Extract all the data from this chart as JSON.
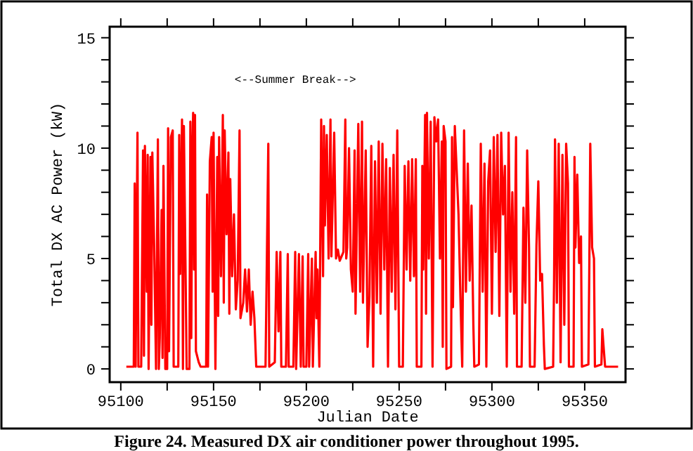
{
  "chart_data": {
    "type": "line",
    "xlabel": "Julian Date",
    "ylabel": "Total DX AC Power (kW)",
    "annotations": [
      "<--Summer Break-->",
      "Figure 24.  Measured DX air conditioner power throughout 1995."
    ],
    "xlim": [
      95094,
      95372
    ],
    "ylim": [
      -0.6,
      15.5
    ],
    "xticks": [
      95100,
      {
        "value": 95125,
        "label": null
      },
      95150,
      {
        "value": 95175,
        "label": null
      },
      95200,
      {
        "value": 95225,
        "label": null
      },
      95250,
      {
        "value": 95275,
        "label": null
      },
      95300,
      {
        "value": 95325,
        "label": null
      },
      95350
    ],
    "yticks": [
      0,
      {
        "value": 1,
        "label": null
      },
      {
        "value": 2,
        "label": null
      },
      {
        "value": 3,
        "label": null
      },
      {
        "value": 4,
        "label": null
      },
      5,
      {
        "value": 6,
        "label": null
      },
      {
        "value": 7,
        "label": null
      },
      {
        "value": 8,
        "label": null
      },
      {
        "value": 9,
        "label": null
      },
      10,
      {
        "value": 11,
        "label": null
      },
      {
        "value": 12,
        "label": null
      },
      {
        "value": 13,
        "label": null
      },
      {
        "value": 14,
        "label": null
      },
      15
    ],
    "grid": false,
    "marker": "none",
    "line_style": "solid",
    "series": [
      {
        "color": "#ff0000",
        "x": [
          95103,
          95107,
          95107.5,
          95108,
          95109,
          95109.5,
          95111,
          95112,
          95112.5,
          95113,
          95114,
          95114.5,
          95115,
          95116,
          95116.5,
          95117,
          95118,
          95119,
          95120,
          95120.5,
          95121,
          95122,
          95122.5,
          95123,
          95124,
          95125,
          95125.5,
          95126,
          95127,
          95128,
          95128.5,
          95131,
          95131.5,
          95132,
          95133,
          95133.5,
          95134,
          95135,
          95135.5,
          95137,
          95137.5,
          95138,
          95138.5,
          95139,
          95139.5,
          95140,
          95140.5,
          95142,
          95143,
          95146,
          95146.5,
          95147,
          95148,
          95149,
          95149.5,
          95150,
          95151,
          95152,
          95152.5,
          95153,
          95154,
          95155,
          95155.5,
          95156,
          95157,
          95158,
          95158.5,
          95159,
          95160,
          95161,
          95162,
          95163,
          95164,
          95164.5,
          95166,
          95167,
          95168,
          95169,
          95170,
          95171,
          95172,
          95173,
          95178,
          95179.5,
          95180,
          95183,
          95184,
          95185,
          95186,
          95186.5,
          95189,
          95190,
          95190.5,
          95193,
          95194,
          95194.5,
          95196,
          95197,
          95198,
          95198.5,
          95200,
          95201,
          95201.5,
          95203,
          95203.5,
          95205,
          95205.5,
          95206,
          95207,
          95208,
          95209,
          95209.5,
          95210,
          95211,
          95212,
          95213,
          95213.5,
          95215,
          95216,
          95217,
          95218,
          95220,
          95221,
          95221.5,
          95222,
          95223,
          95224,
          95225,
          95226,
          95226.5,
          95228,
          95229,
          95230,
          95230.5,
          95232,
          95233,
          95234,
          95235,
          95236,
          95237,
          95238,
          95239,
          95240,
          95241,
          95242,
          95243,
          95244,
          95245,
          95246,
          95247,
          95248,
          95249,
          95250,
          95252,
          95253,
          95254,
          95255,
          95256,
          95257,
          95258,
          95259,
          95259.5,
          95262,
          95262.5,
          95263,
          95264,
          95264.5,
          95265,
          95266,
          95267,
          95268,
          95269,
          95270,
          95271,
          95272,
          95273,
          95273.5,
          95274,
          95275,
          95275.5,
          95278,
          95278.5,
          95279,
          95280,
          95281,
          95282,
          95283,
          95284,
          95285,
          95286,
          95287,
          95288,
          95289,
          95290,
          95290.5,
          95293,
          95294,
          95295,
          95296,
          95297,
          95298,
          95299,
          95300,
          95301,
          95302,
          95303,
          95304,
          95305,
          95306,
          95307,
          95308,
          95309,
          95310,
          95311,
          95312,
          95313,
          95313.5,
          95316,
          95317,
          95318,
          95319,
          95320,
          95320.5,
          95323,
          95324,
          95325,
          95326,
          95327,
          95328,
          95328.5,
          95333,
          95333.5,
          95334,
          95335,
          95336,
          95337,
          95338,
          95339,
          95340,
          95341,
          95341.5,
          95344,
          95344.5,
          95345,
          95346,
          95347,
          95348,
          95348.5,
          95352,
          95352.5,
          95353,
          95354,
          95355,
          95355.5,
          95359,
          95359.5,
          95360,
          95361,
          95368
        ],
        "values": [
          0.1,
          0.1,
          8.4,
          0.1,
          10.7,
          0.1,
          0.1,
          9.9,
          0.6,
          10.1,
          3.5,
          9.7,
          0,
          9.6,
          2,
          9.8,
          5.5,
          0,
          10.4,
          0,
          1.4,
          7.2,
          0.5,
          9.2,
          0,
          0,
          10.9,
          0.8,
          10.5,
          10.8,
          0.1,
          0.1,
          10.6,
          4.3,
          11.3,
          0,
          11.0,
          3.8,
          0,
          0,
          11.2,
          1.4,
          9.5,
          11.6,
          4.5,
          11.5,
          0.8,
          0.3,
          0.1,
          0.1,
          7.9,
          0.1,
          9.4,
          10.5,
          3.5,
          10.7,
          0,
          9.6,
          2.4,
          10.5,
          4.2,
          11.5,
          3.0,
          10.8,
          6.1,
          9.8,
          2.5,
          8.6,
          4.2,
          7.0,
          2.7,
          4.0,
          10.8,
          2.3,
          3.0,
          4.5,
          2.6,
          4.5,
          2.0,
          3.5,
          2.3,
          0.1,
          0.1,
          10.2,
          0.1,
          0.3,
          5.3,
          1.7,
          5.3,
          0.1,
          0.1,
          5.2,
          0.1,
          0.1,
          5.3,
          0,
          5.2,
          0.1,
          5.1,
          0.1,
          0.1,
          5.2,
          0.1,
          5.0,
          0.1,
          5.3,
          2.3,
          4.5,
          0.1,
          11.3,
          4.2,
          11.0,
          6.5,
          10.6,
          5.0,
          11.3,
          5.1,
          10.7,
          5.0,
          5.4,
          4.9,
          5.3,
          11.3,
          5.0,
          5.5,
          10.0,
          4.5,
          3.5,
          9.9,
          2.5,
          11.1,
          3.5,
          11.2,
          3.0,
          9.9,
          1.0,
          3.3,
          10.1,
          0.1,
          9.4,
          3.0,
          10.3,
          2.5,
          10.2,
          4.5,
          9.5,
          0.1,
          9.1,
          3.5,
          9.7,
          2.7,
          10.8,
          0.1,
          0.1,
          9.2,
          4.5,
          9.4,
          4.0,
          9.5,
          4.2,
          9.5,
          0.1,
          0.1,
          9.2,
          4.5,
          11.5,
          2.5,
          11.6,
          5.0,
          11.2,
          0.1,
          11.4,
          10.3,
          11.3,
          5.0,
          10.3,
          1.0,
          11.0,
          10.3,
          0,
          0.1,
          10.5,
          2.8,
          11.0,
          9.0,
          7.0,
          3.3,
          0.1,
          10.8,
          3.5,
          9.3,
          4.0,
          7.4,
          2.0,
          0.1,
          0.2,
          10.2,
          3.5,
          9.3,
          0.1,
          8.5,
          9.9,
          2.5,
          10.5,
          5.3,
          10.6,
          2.4,
          10.7,
          7.0,
          9.2,
          0.1,
          10.7,
          3.5,
          8.0,
          2.5,
          10.5,
          0.1,
          0.1,
          7.3,
          3.0,
          9.9,
          5.5,
          0.1,
          0.1,
          5.6,
          8.5,
          4.0,
          4.3,
          1.1,
          0,
          0.1,
          4.1,
          10.4,
          3.0,
          10.2,
          0.3,
          9.7,
          2.0,
          10.2,
          8.4,
          0.1,
          0.1,
          9.6,
          5.5,
          8.8,
          4.8,
          6.0,
          0.1,
          0.2,
          4.8,
          10.2,
          5.5,
          5.0,
          0.1,
          0.2,
          1.8,
          1.2,
          0.1,
          0.1
        ]
      }
    ]
  }
}
